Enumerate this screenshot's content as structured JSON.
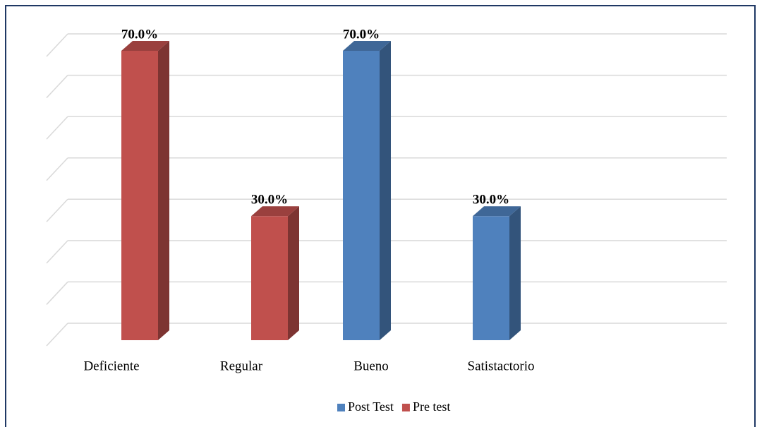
{
  "chart_data": {
    "type": "bar3d",
    "categories": [
      "Deficiente",
      "Regular",
      "Bueno",
      "Satistactorio"
    ],
    "series": [
      {
        "name": "Post Test",
        "color": "#4f81bd",
        "values": [
          null,
          null,
          70,
          30
        ],
        "value_labels": [
          null,
          null,
          "70.0%",
          "30.0%"
        ]
      },
      {
        "name": "Pre test",
        "color": "#c0504d",
        "values": [
          70,
          30,
          null,
          null
        ],
        "value_labels": [
          "70.0%",
          "30.0%",
          null,
          null
        ]
      }
    ],
    "ylim": [
      0,
      70
    ],
    "yticks": [
      0,
      10,
      20,
      30,
      40,
      50,
      60,
      70
    ],
    "grid": true,
    "legend": "bottom"
  }
}
